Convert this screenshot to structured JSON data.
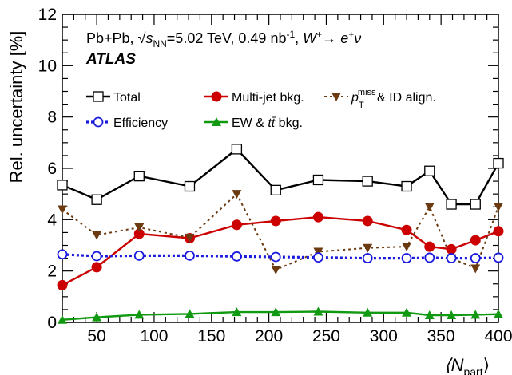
{
  "header": {
    "system": "Pb+Pb,",
    "energy_symbol": "√s",
    "energy_sub": "NN",
    "energy_value": "=5.02 TeV,",
    "lumi": "0.49 nb",
    "lumi_sup": "-1",
    "channel_w": "W",
    "channel_w_sup": "+",
    "channel_arrow": "→",
    "channel_e": "e",
    "channel_e_sup": "+",
    "channel_nu": "ν",
    "experiment": "ATLAS"
  },
  "chart_data": {
    "type": "line",
    "xlabel": "⟨N",
    "xlabel_sub": "part",
    "xlabel_close": "⟩",
    "ylabel": "Rel. uncertainty [%]",
    "xlim": [
      20,
      400
    ],
    "ylim": [
      0,
      12
    ],
    "x_ticks": [
      50,
      100,
      150,
      200,
      250,
      300,
      350,
      400
    ],
    "y_ticks": [
      0,
      2,
      4,
      6,
      8,
      10,
      12
    ],
    "x": [
      20,
      50,
      87,
      131,
      172,
      206,
      243,
      286,
      320,
      340,
      359,
      380,
      400
    ],
    "series": [
      {
        "name": "Total",
        "color": "#000000",
        "marker": "open-square",
        "line": "solid",
        "values": [
          5.35,
          4.78,
          5.7,
          5.3,
          6.75,
          5.15,
          5.55,
          5.5,
          5.3,
          5.9,
          4.6,
          4.6,
          6.2
        ]
      },
      {
        "name": "Multi-jet bkg.",
        "color": "#cc0000",
        "marker": "filled-circle",
        "line": "solid",
        "values": [
          1.45,
          2.15,
          3.45,
          3.28,
          3.8,
          3.95,
          4.1,
          3.95,
          3.6,
          2.95,
          2.85,
          3.2,
          3.55
        ]
      },
      {
        "name": "p_T^miss & ID align.",
        "color": "#6b3a10",
        "marker": "filled-triangle-down",
        "line": "dotted",
        "values": [
          4.4,
          3.4,
          3.7,
          3.3,
          5.0,
          2.05,
          2.75,
          2.9,
          2.95,
          4.5,
          2.5,
          2.1,
          4.5
        ]
      },
      {
        "name": "Efficiency",
        "color": "#1a1adf",
        "marker": "open-circle",
        "line": "dotted",
        "values": [
          2.65,
          2.58,
          2.6,
          2.6,
          2.57,
          2.55,
          2.53,
          2.5,
          2.5,
          2.52,
          2.5,
          2.5,
          2.52
        ]
      },
      {
        "name": "EW & tt̄ bkg.",
        "color": "#119911",
        "marker": "filled-triangle-up",
        "line": "solid",
        "values": [
          0.1,
          0.2,
          0.3,
          0.33,
          0.4,
          0.4,
          0.42,
          0.38,
          0.38,
          0.28,
          0.28,
          0.3,
          0.32
        ]
      }
    ],
    "legend": [
      {
        "label": "Total"
      },
      {
        "label": "Multi-jet bkg."
      },
      {
        "label_main": "p",
        "label_sub": "T",
        "label_sup": "miss",
        "label_rest": "& ID align."
      },
      {
        "label": "Efficiency"
      },
      {
        "label_main": "EW & ",
        "label_tt": "tt̄",
        "label_rest": " bkg."
      }
    ],
    "legend_placement": "top-left",
    "grid": false
  }
}
